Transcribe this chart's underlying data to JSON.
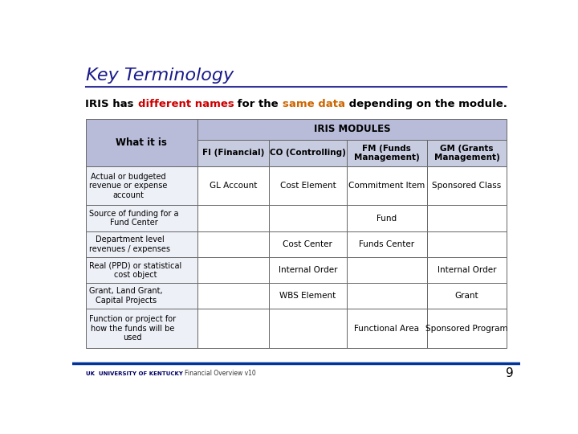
{
  "title": "Key Terminology",
  "subtitle_parts": [
    {
      "text": "IRIS has ",
      "color": "#000000"
    },
    {
      "text": "different names",
      "color": "#CC0000"
    },
    {
      "text": " for the ",
      "color": "#000000"
    },
    {
      "text": "same data",
      "color": "#CC6600"
    },
    {
      "text": " depending on the module.",
      "color": "#000000"
    }
  ],
  "header_bg": "#b8bcd8",
  "header2_bg": "#c8cce0",
  "border_color": "#666666",
  "col_headers": [
    "FI (Financial)",
    "CO (Controlling)",
    "FM (Funds\nManagement)",
    "GM (Grants\nManagement)"
  ],
  "row_header": "What it is",
  "iris_modules_header": "IRIS MODULES",
  "rows": [
    {
      "what": "Actual or budgeted\nrevenue or expense\naccount",
      "fi": "GL Account",
      "co": "Cost Element",
      "fm": "Commitment Item",
      "gm": "Sponsored Class"
    },
    {
      "what": "Source of funding for a\nFund Center",
      "fi": "",
      "co": "",
      "fm": "Fund",
      "gm": ""
    },
    {
      "what": "Department level\nrevenues / expenses",
      "fi": "",
      "co": "Cost Center",
      "fm": "Funds Center",
      "gm": ""
    },
    {
      "what": "Real (PPD) or statistical\ncost object",
      "fi": "",
      "co": "Internal Order",
      "fm": "",
      "gm": "Internal Order"
    },
    {
      "what": "Grant, Land Grant,\nCapital Projects",
      "fi": "",
      "co": "WBS Element",
      "fm": "",
      "gm": "Grant"
    },
    {
      "what": "Function or project for\nhow the funds will be\nused",
      "fi": "",
      "co": "",
      "fm": "Functional Area",
      "gm": "Sponsored Program"
    }
  ],
  "footer_text": "Financial Overview v10",
  "page_number": "9",
  "bg_color": "#ffffff",
  "title_color": "#1a1a8c",
  "underline_color": "#333399",
  "footer_line_color": "#003399",
  "row0_bg": "#eef0f8",
  "row_bg": "#ffffff"
}
